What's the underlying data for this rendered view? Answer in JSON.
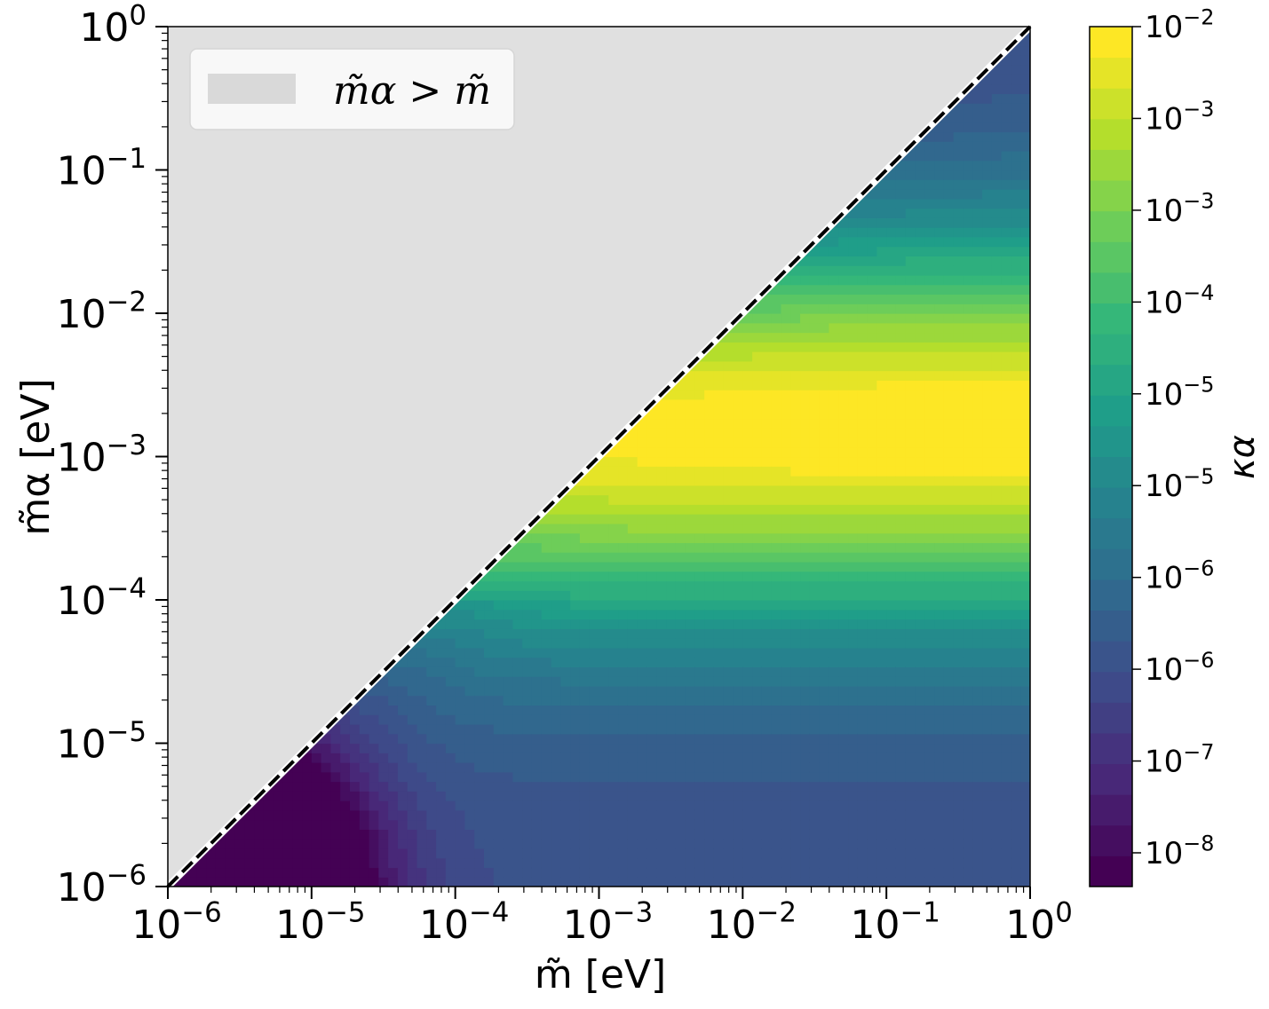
{
  "chart_data": {
    "type": "heatmap",
    "xlabel": "m̃ [eV]",
    "ylabel": "m̃α [eV]",
    "x_scale": "log",
    "y_scale": "log",
    "xlim": [
      1e-06,
      1
    ],
    "ylim": [
      1e-06,
      1
    ],
    "x_ticks": [
      {
        "base": "10",
        "exp": "−6"
      },
      {
        "base": "10",
        "exp": "−5"
      },
      {
        "base": "10",
        "exp": "−4"
      },
      {
        "base": "10",
        "exp": "−3"
      },
      {
        "base": "10",
        "exp": "−2"
      },
      {
        "base": "10",
        "exp": "−1"
      },
      {
        "base": "10",
        "exp": "0"
      }
    ],
    "y_ticks": [
      {
        "base": "10",
        "exp": "−6"
      },
      {
        "base": "10",
        "exp": "−5"
      },
      {
        "base": "10",
        "exp": "−4"
      },
      {
        "base": "10",
        "exp": "−3"
      },
      {
        "base": "10",
        "exp": "−2"
      },
      {
        "base": "10",
        "exp": "−1"
      },
      {
        "base": "10",
        "exp": "0"
      }
    ],
    "colorbar": {
      "label": "κα",
      "scale": "log",
      "range": [
        5e-09,
        0.01
      ],
      "colormap": "viridis",
      "ticks": [
        {
          "base": "10",
          "exp": "−2"
        },
        {
          "base": "10",
          "exp": "−3"
        },
        {
          "base": "10",
          "exp": "−3"
        },
        {
          "base": "10",
          "exp": "−4"
        },
        {
          "base": "10",
          "exp": "−5"
        },
        {
          "base": "10",
          "exp": "−5"
        },
        {
          "base": "10",
          "exp": "−6"
        },
        {
          "base": "10",
          "exp": "−6"
        },
        {
          "base": "10",
          "exp": "−7"
        },
        {
          "base": "10",
          "exp": "−8"
        }
      ],
      "levels": 28
    },
    "excluded_region": {
      "legend_label": "m̃α > m̃",
      "color": "#e0e0e0",
      "boundary": "m̃α = m̃",
      "boundary_style": "black dashed on white"
    },
    "legend_position": "top-left",
    "peak": {
      "x_range": [
        0.003,
        1
      ],
      "y": 0.0015,
      "level": "max"
    },
    "minimum": {
      "x": 2.6e-06,
      "y": 1e-06,
      "level": "min"
    }
  }
}
